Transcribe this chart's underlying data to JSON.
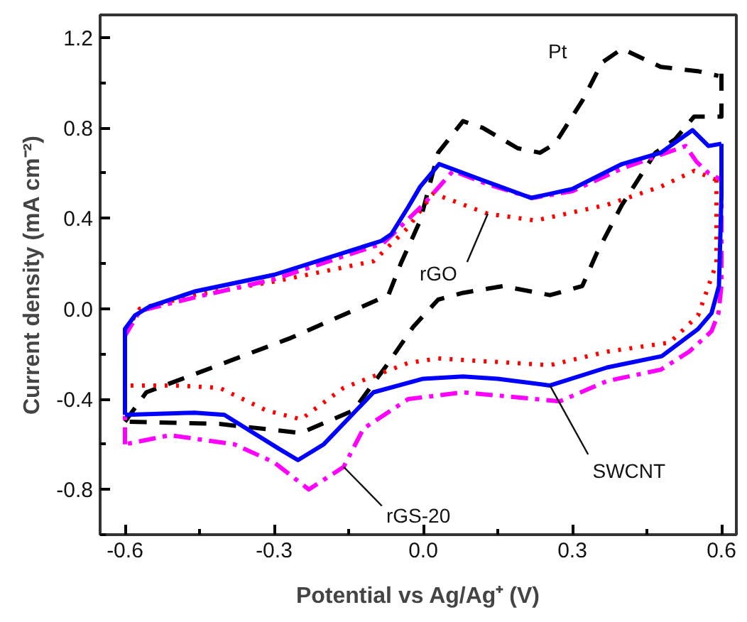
{
  "chart_data": {
    "type": "line",
    "xlabel": "Potential vs Ag/Ag⁺ (V)",
    "ylabel": "Current density (mA cm⁻²)",
    "xlim": [
      -0.65,
      0.63
    ],
    "ylim": [
      -1.0,
      1.3
    ],
    "xticks": [
      {
        "value": -0.6,
        "label": "-0.6"
      },
      {
        "value": -0.45,
        "label": null
      },
      {
        "value": -0.3,
        "label": "-0.3"
      },
      {
        "value": -0.15,
        "label": null
      },
      {
        "value": 0,
        "label": "0.0"
      },
      {
        "value": 0.15,
        "label": null
      },
      {
        "value": 0.3,
        "label": "0.3"
      },
      {
        "value": 0.45,
        "label": null
      },
      {
        "value": 0.6,
        "label": "0.6"
      }
    ],
    "yticks": [
      {
        "value": -1.0,
        "label": null
      },
      {
        "value": -0.8,
        "label": "-0.8"
      },
      {
        "value": -0.6,
        "label": null
      },
      {
        "value": -0.4,
        "label": "-0.4"
      },
      {
        "value": -0.2,
        "label": null
      },
      {
        "value": 0,
        "label": "0.0"
      },
      {
        "value": 0.2,
        "label": null
      },
      {
        "value": 0.4,
        "label": "0.4"
      },
      {
        "value": 0.6,
        "label": null
      },
      {
        "value": 0.8,
        "label": "0.8"
      },
      {
        "value": 1.0,
        "label": null
      },
      {
        "value": 1.2,
        "label": "1.2"
      }
    ],
    "grid": false,
    "marker": "none",
    "series": [
      {
        "color": "#000000",
        "line_style": "dashed",
        "x": [
          -0.6,
          -0.557,
          -0.267,
          -0.07,
          -0.045,
          -0.006,
          0.03,
          0.08,
          0.12,
          0.19,
          0.235,
          0.265,
          0.32,
          0.36,
          0.4,
          0.478,
          0.555,
          0.594
        ],
        "values": [
          -0.5,
          -0.37,
          -0.13,
          0.06,
          0.2,
          0.39,
          0.69,
          0.83,
          0.8,
          0.71,
          0.69,
          0.73,
          0.92,
          1.09,
          1.15,
          1.07,
          1.05,
          1.03
        ]
      },
      {
        "color": "#000000",
        "line_style": "dashed",
        "x": [
          0.6,
          0.6,
          0.545,
          0.507,
          0.467,
          0.4,
          0.35,
          0.32,
          0.255,
          0.16,
          0.08,
          0.03,
          -0.02,
          -0.07,
          -0.14,
          -0.246,
          -0.41,
          -0.6
        ],
        "values": [
          1.04,
          0.85,
          0.85,
          0.75,
          0.69,
          0.46,
          0.25,
          0.1,
          0.06,
          0.1,
          0.07,
          0.04,
          -0.08,
          -0.24,
          -0.45,
          -0.55,
          -0.51,
          -0.5
        ]
      },
      {
        "color": "#ff0000",
        "line_style": "dotted",
        "x": [
          -0.6,
          -0.6,
          -0.57,
          -0.46,
          -0.3,
          -0.1,
          -0.03,
          0.02,
          0.13,
          0.226,
          0.37,
          0.478,
          0.545,
          0.59
        ],
        "values": [
          -0.34,
          -0.1,
          0.0,
          0.06,
          0.12,
          0.21,
          0.36,
          0.51,
          0.42,
          0.39,
          0.46,
          0.54,
          0.61,
          0.57
        ]
      },
      {
        "color": "#ff0000",
        "line_style": "dotted",
        "x": [
          0.59,
          0.59,
          0.553,
          0.496,
          0.37,
          0.255,
          0.03,
          -0.03,
          -0.16,
          -0.246,
          -0.316,
          -0.41,
          -0.5,
          -0.6
        ],
        "values": [
          0.57,
          0.2,
          -0.03,
          -0.15,
          -0.19,
          -0.25,
          -0.22,
          -0.24,
          -0.35,
          -0.49,
          -0.45,
          -0.35,
          -0.34,
          -0.34
        ]
      },
      {
        "color": "#ff00ff",
        "line_style": "dashdot",
        "x": [
          -0.6,
          -0.6,
          -0.57,
          -0.46,
          -0.3,
          -0.08,
          0.0,
          0.06,
          0.13,
          0.22,
          0.3,
          0.4,
          0.528,
          0.55,
          0.574,
          0.6
        ],
        "values": [
          -0.6,
          -0.12,
          -0.01,
          0.05,
          0.13,
          0.29,
          0.46,
          0.61,
          0.55,
          0.49,
          0.52,
          0.62,
          0.72,
          0.65,
          0.6,
          0.57
        ]
      },
      {
        "color": "#ff00ff",
        "line_style": "dashdot",
        "x": [
          0.6,
          0.6,
          0.594,
          0.58,
          0.535,
          0.478,
          0.37,
          0.275,
          0.08,
          -0.03,
          -0.12,
          -0.16,
          -0.23,
          -0.3,
          -0.38,
          -0.51,
          -0.6
        ],
        "values": [
          0.57,
          0.1,
          -0.02,
          -0.1,
          -0.19,
          -0.27,
          -0.32,
          -0.41,
          -0.37,
          -0.4,
          -0.53,
          -0.7,
          -0.8,
          -0.68,
          -0.6,
          -0.56,
          -0.6
        ]
      },
      {
        "color": "#0000ff",
        "line_style": "solid",
        "x": [
          -0.6,
          -0.6,
          -0.58,
          -0.55,
          -0.46,
          -0.3,
          -0.084,
          -0.064,
          -0.03,
          -0.006,
          0.032,
          0.13,
          0.217,
          0.3,
          0.4,
          0.478,
          0.542,
          0.574,
          0.6
        ],
        "values": [
          -0.47,
          -0.09,
          -0.03,
          0.01,
          0.076,
          0.15,
          0.3,
          0.33,
          0.45,
          0.54,
          0.64,
          0.56,
          0.49,
          0.53,
          0.64,
          0.69,
          0.79,
          0.72,
          0.73
        ]
      },
      {
        "color": "#0000ff",
        "line_style": "solid",
        "x": [
          0.6,
          0.6,
          0.595,
          0.58,
          0.553,
          0.48,
          0.37,
          0.255,
          0.15,
          0.08,
          0.0,
          -0.1,
          -0.2,
          -0.252,
          -0.29,
          -0.4,
          -0.46,
          -0.6
        ],
        "values": [
          0.73,
          0.5,
          0.1,
          -0.02,
          -0.09,
          -0.21,
          -0.26,
          -0.34,
          -0.31,
          -0.3,
          -0.31,
          -0.37,
          -0.6,
          -0.67,
          -0.62,
          -0.47,
          -0.46,
          -0.47
        ]
      }
    ],
    "annotations": [
      {
        "text": "Pt",
        "x": 0.36,
        "y": 1.09
      },
      {
        "text": "rGO",
        "x": 0.13,
        "y": 0.42
      },
      {
        "text": "SWCNT",
        "x": 0.255,
        "y": -0.34
      },
      {
        "text": "rGS-20",
        "x": -0.16,
        "y": -0.7
      }
    ]
  }
}
